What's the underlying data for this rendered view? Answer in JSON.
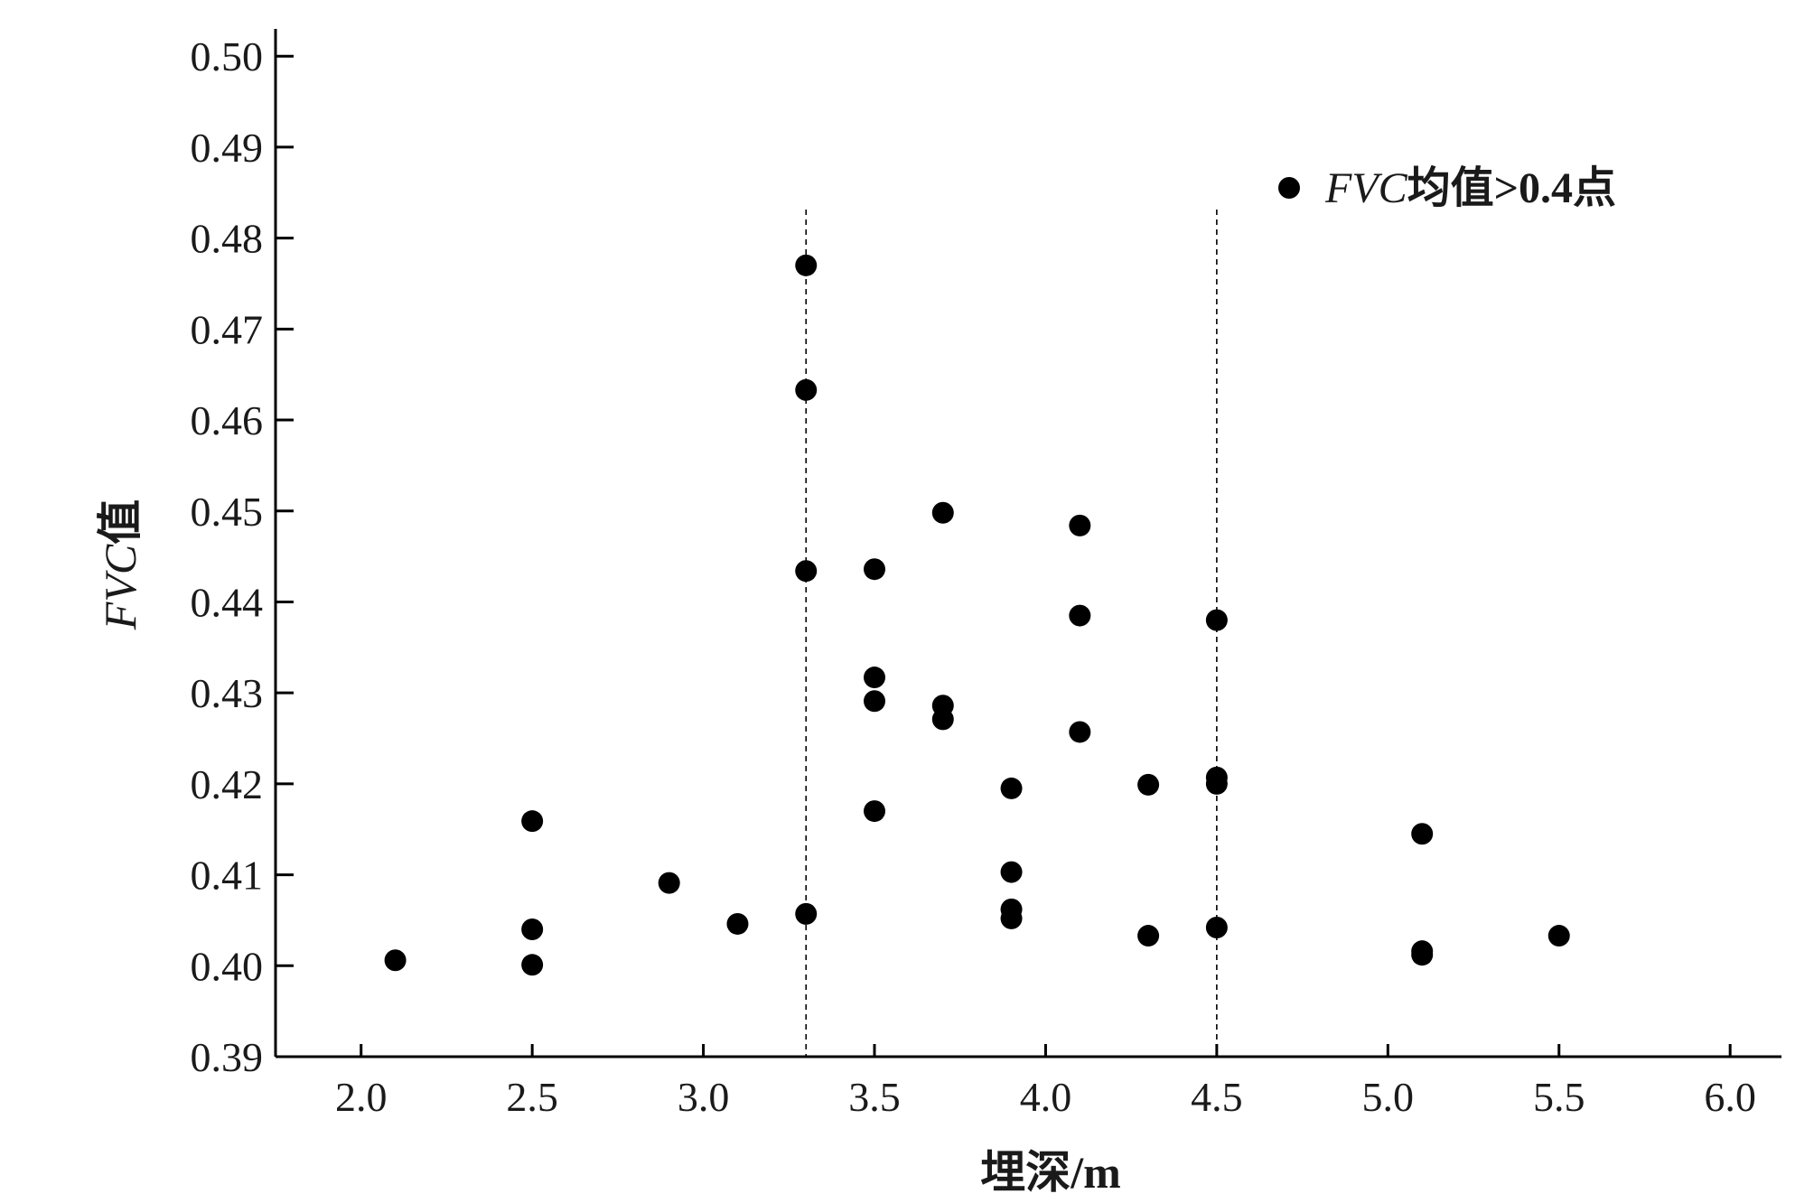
{
  "chart_data": {
    "type": "scatter",
    "xlabel": "埋深/m",
    "ylabel": {
      "italic": "FVC",
      "rest": "值"
    },
    "xlim": [
      1.75,
      6.15
    ],
    "ylim": [
      0.39,
      0.503
    ],
    "x_ticks": [
      2.0,
      2.5,
      3.0,
      3.5,
      4.0,
      4.5,
      5.0,
      5.5,
      6.0
    ],
    "x_tick_labels": [
      "2.0",
      "2.5",
      "3.0",
      "3.5",
      "4.0",
      "4.5",
      "5.0",
      "5.5",
      "6.0"
    ],
    "y_ticks": [
      0.39,
      0.4,
      0.41,
      0.42,
      0.43,
      0.44,
      0.45,
      0.46,
      0.47,
      0.48,
      0.49,
      0.5
    ],
    "y_tick_labels": [
      "0.39",
      "0.40",
      "0.41",
      "0.42",
      "0.43",
      "0.44",
      "0.45",
      "0.46",
      "0.47",
      "0.48",
      "0.49",
      "0.50"
    ],
    "reference_lines_x": [
      3.3,
      4.5
    ],
    "legend": {
      "italic": "FVC",
      "rest": "均值>0.4点",
      "placement": "top-right"
    },
    "series": [
      {
        "name": "FVC均值>0.4点",
        "color": "#000000",
        "points": [
          [
            2.1,
            0.4006
          ],
          [
            2.5,
            0.4159
          ],
          [
            2.5,
            0.404
          ],
          [
            2.5,
            0.4001
          ],
          [
            2.9,
            0.4091
          ],
          [
            3.1,
            0.4046
          ],
          [
            3.3,
            0.477
          ],
          [
            3.3,
            0.4633
          ],
          [
            3.3,
            0.4434
          ],
          [
            3.3,
            0.4057
          ],
          [
            3.5,
            0.4436
          ],
          [
            3.5,
            0.4317
          ],
          [
            3.5,
            0.4291
          ],
          [
            3.5,
            0.417
          ],
          [
            3.7,
            0.4498
          ],
          [
            3.7,
            0.4286
          ],
          [
            3.7,
            0.4271
          ],
          [
            3.9,
            0.4195
          ],
          [
            3.9,
            0.4103
          ],
          [
            3.9,
            0.4062
          ],
          [
            3.9,
            0.4052
          ],
          [
            4.1,
            0.4484
          ],
          [
            4.1,
            0.4385
          ],
          [
            4.1,
            0.4257
          ],
          [
            4.3,
            0.4199
          ],
          [
            4.3,
            0.4033
          ],
          [
            4.5,
            0.438
          ],
          [
            4.5,
            0.4207
          ],
          [
            4.5,
            0.42
          ],
          [
            4.5,
            0.4042
          ],
          [
            5.1,
            0.4145
          ],
          [
            5.1,
            0.4016
          ],
          [
            5.1,
            0.4012
          ],
          [
            5.5,
            0.4033
          ]
        ]
      }
    ]
  }
}
